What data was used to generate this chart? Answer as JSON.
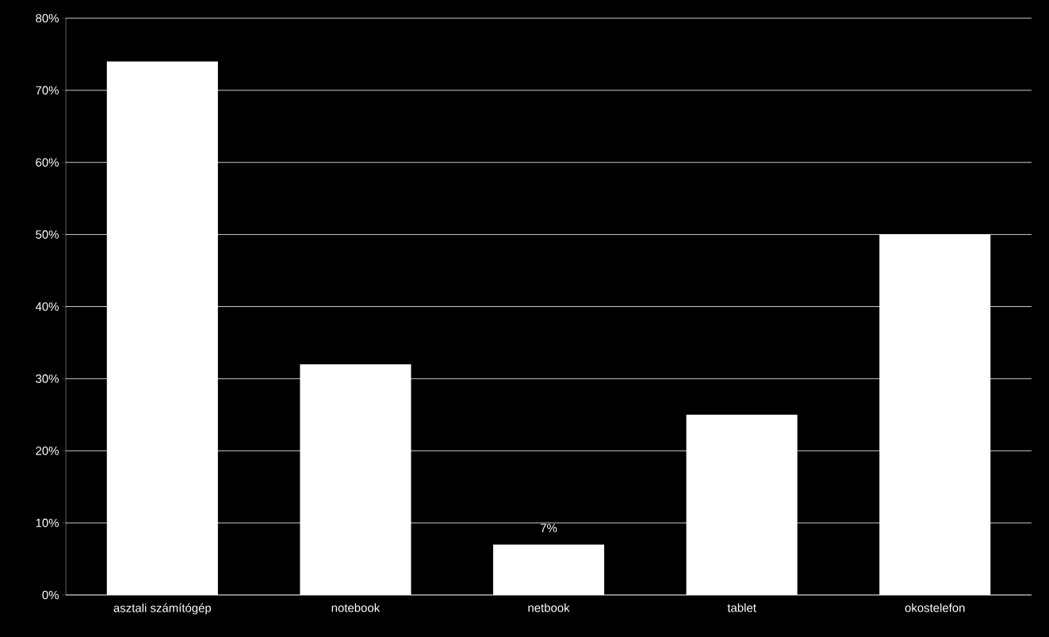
{
  "chart_data": {
    "type": "bar",
    "categories": [
      "asztali számítógép",
      "notebook",
      "netbook",
      "tablet",
      "okostelefon"
    ],
    "values": [
      74,
      32,
      7,
      25,
      50
    ],
    "color": "#ffffff",
    "value_labels": [
      null,
      null,
      "7%",
      null,
      null
    ],
    "ylim": [
      0,
      80
    ],
    "yticks": [
      {
        "value": 0,
        "label": "0%"
      },
      {
        "value": 10,
        "label": "10%"
      },
      {
        "value": 20,
        "label": "20%"
      },
      {
        "value": 30,
        "label": "30%"
      },
      {
        "value": 40,
        "label": "40%"
      },
      {
        "value": 50,
        "label": "50%"
      },
      {
        "value": 60,
        "label": "60%"
      },
      {
        "value": 70,
        "label": "70%"
      },
      {
        "value": 80,
        "label": "80%"
      }
    ],
    "grid": "y"
  }
}
